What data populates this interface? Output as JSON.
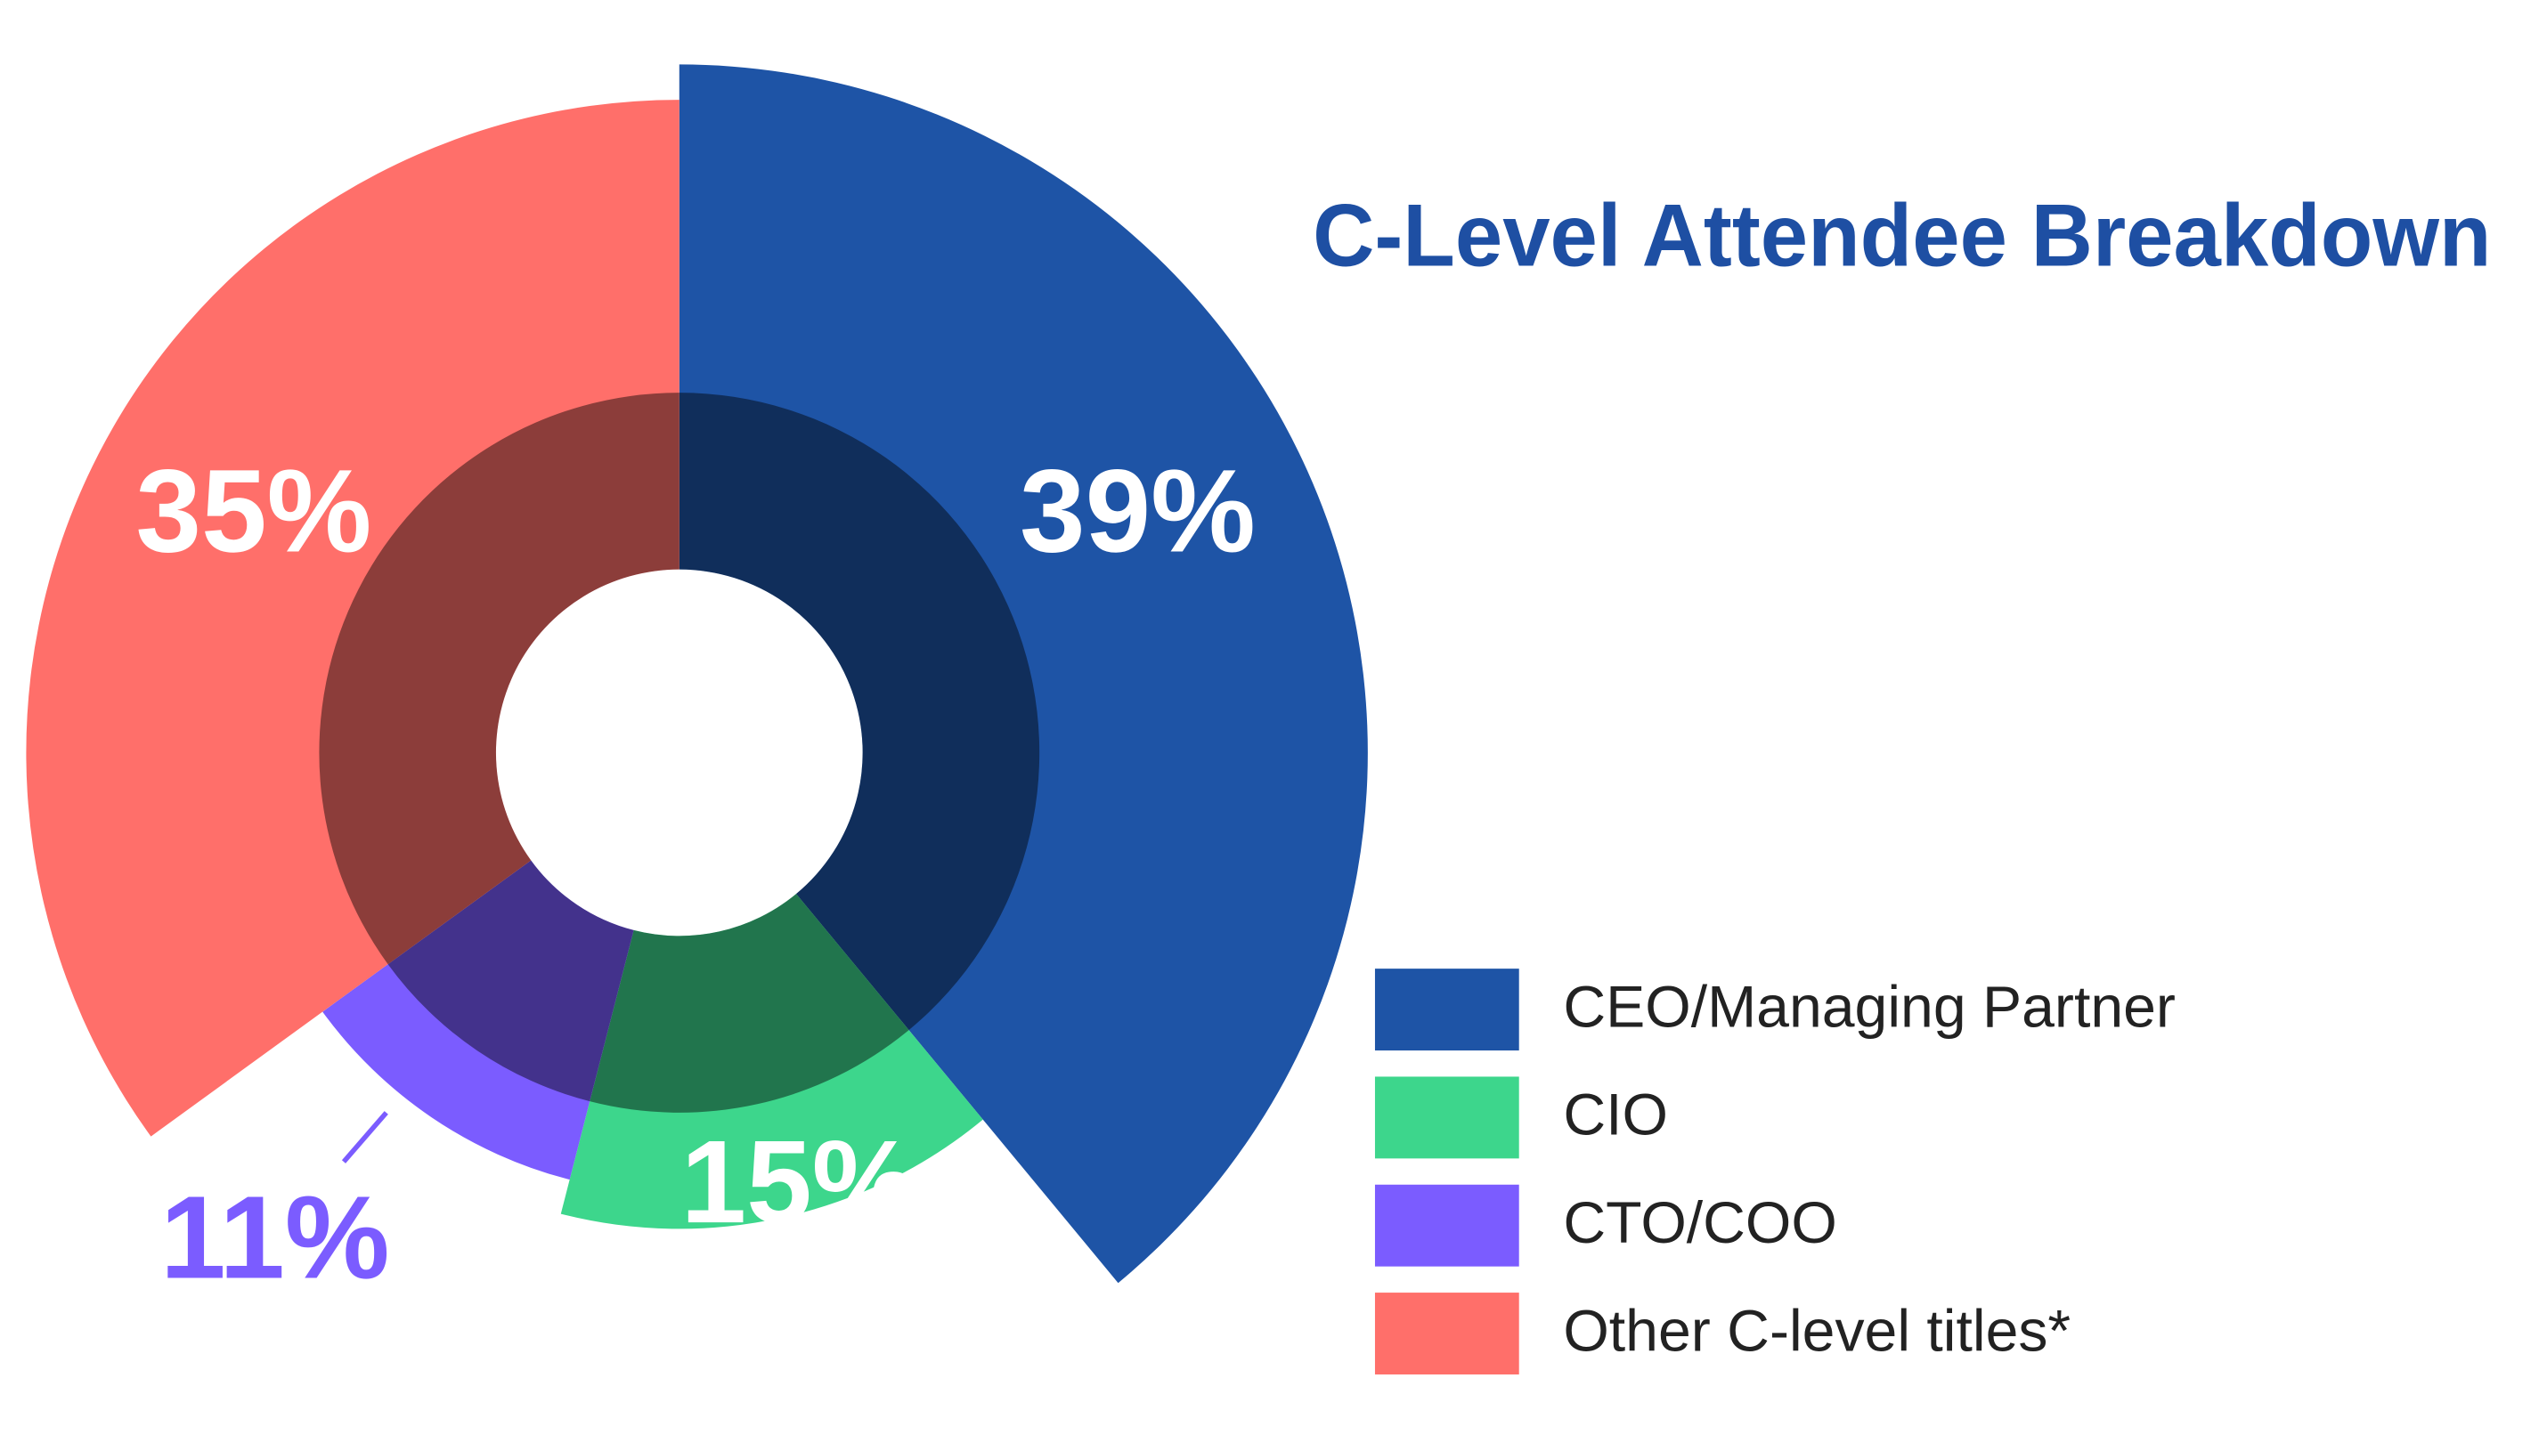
{
  "chart_data": {
    "type": "pie",
    "title": "C-Level Attendee Breakdown",
    "categories": [
      "CEO/Managing Partner",
      "CIO",
      "CTO/COO",
      "Other C-level titles*"
    ],
    "values": [
      39,
      15,
      11,
      35
    ],
    "value_labels": [
      "39%",
      "15%",
      "11%",
      "35%"
    ],
    "colors": [
      "#1e54a6",
      "#3dd68c",
      "#7b5cff",
      "#ff6f6a"
    ]
  }
}
